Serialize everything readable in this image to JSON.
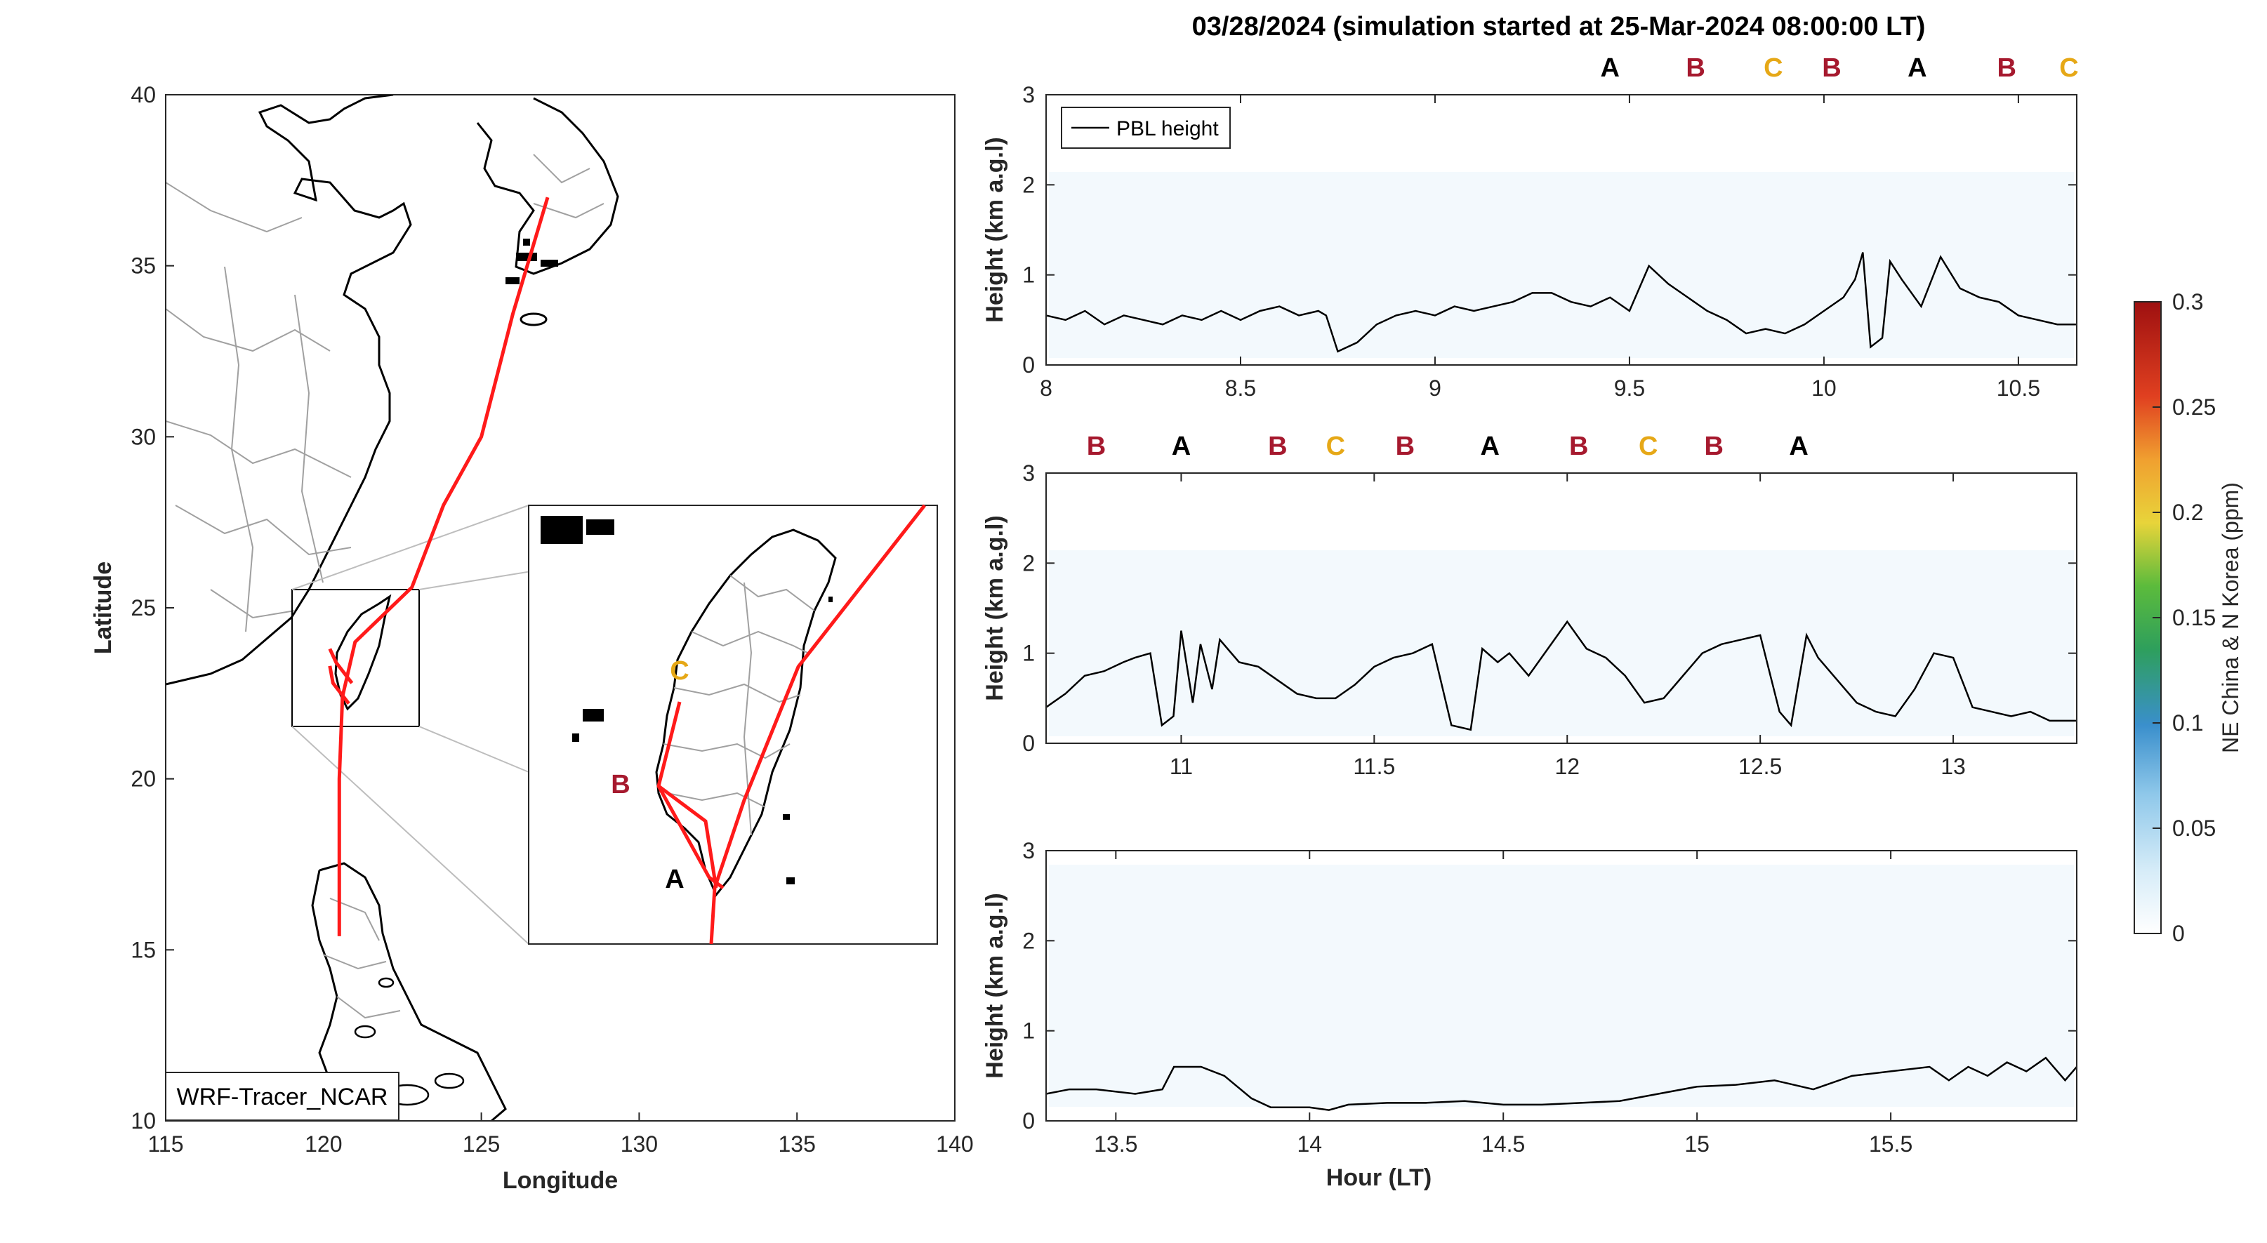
{
  "figure": {
    "title": "03/28/2024 (simulation started at 25-Mar-2024 08:00:00 LT)",
    "colors": {
      "track": "#ff1a1a",
      "segment_A": "#000000",
      "segment_B": "#a6192e",
      "segment_C": "#e6a817",
      "coast": "#000000",
      "border": "#a0a0a0",
      "tracer_bg": "#e9f4fb"
    }
  },
  "map": {
    "xlabel": "Longitude",
    "ylabel": "Latitude",
    "xlim": [
      115,
      140
    ],
    "ylim": [
      10,
      40
    ],
    "xticks": [
      "115",
      "120",
      "125",
      "130",
      "135",
      "140"
    ],
    "yticks": [
      "10",
      "15",
      "20",
      "25",
      "30",
      "35",
      "40"
    ],
    "model_label": "WRF-Tracer_NCAR",
    "inset_labels": [
      "C",
      "B",
      "A"
    ]
  },
  "colorbar": {
    "label": "NE China & N Korea (ppm)",
    "ticks": [
      "0",
      "0.05",
      "0.1",
      "0.15",
      "0.2",
      "0.25",
      "0.3"
    ],
    "range": [
      0,
      0.3
    ]
  },
  "chart_data": [
    {
      "type": "map",
      "name": "Flight track",
      "track_lonlat": [
        [
          127.1,
          37.0
        ],
        [
          126.0,
          33.6
        ],
        [
          125.0,
          30.0
        ],
        [
          123.8,
          28.0
        ],
        [
          122.8,
          25.6
        ],
        [
          121.0,
          24.0
        ],
        [
          120.6,
          22.4
        ],
        [
          120.5,
          20.0
        ],
        [
          120.5,
          15.4
        ]
      ],
      "taiwan_tracks": [
        [
          [
            120.9,
            22.8
          ],
          [
            120.4,
            23.4
          ],
          [
            120.2,
            23.8
          ]
        ],
        [
          [
            120.2,
            23.3
          ],
          [
            120.3,
            22.8
          ],
          [
            120.8,
            22.2
          ]
        ]
      ],
      "inset_track": [
        [
          0.0,
          0.0
        ]
      ]
    },
    {
      "type": "line",
      "name": "PBL height",
      "xlabel": "",
      "ylabel": "Height (km a.g.l)",
      "xlim": [
        8.0,
        10.65
      ],
      "ylim": [
        0,
        3
      ],
      "xticks": [
        "8",
        "8.5",
        "9",
        "9.5",
        "10",
        "10.5"
      ],
      "yticks": [
        "0",
        "1",
        "2",
        "3"
      ],
      "legend": "PBL height",
      "segments": [
        {
          "x": 9.45,
          "label": "A"
        },
        {
          "x": 9.67,
          "label": "B"
        },
        {
          "x": 9.87,
          "label": "C"
        },
        {
          "x": 10.02,
          "label": "B"
        },
        {
          "x": 10.24,
          "label": "A"
        },
        {
          "x": 10.47,
          "label": "B"
        },
        {
          "x": 10.63,
          "label": "C"
        }
      ],
      "x": [
        8.0,
        8.05,
        8.1,
        8.15,
        8.2,
        8.25,
        8.3,
        8.35,
        8.4,
        8.45,
        8.5,
        8.55,
        8.6,
        8.65,
        8.7,
        8.72,
        8.75,
        8.8,
        8.85,
        8.9,
        8.95,
        9.0,
        9.05,
        9.1,
        9.15,
        9.2,
        9.25,
        9.3,
        9.35,
        9.4,
        9.45,
        9.5,
        9.55,
        9.6,
        9.65,
        9.7,
        9.75,
        9.8,
        9.85,
        9.9,
        9.95,
        10.0,
        10.05,
        10.08,
        10.1,
        10.12,
        10.15,
        10.17,
        10.2,
        10.25,
        10.3,
        10.35,
        10.4,
        10.45,
        10.5,
        10.55,
        10.6,
        10.65
      ],
      "y": [
        0.55,
        0.5,
        0.6,
        0.45,
        0.55,
        0.5,
        0.45,
        0.55,
        0.5,
        0.6,
        0.5,
        0.6,
        0.65,
        0.55,
        0.6,
        0.55,
        0.15,
        0.25,
        0.45,
        0.55,
        0.6,
        0.55,
        0.65,
        0.6,
        0.65,
        0.7,
        0.8,
        0.8,
        0.7,
        0.65,
        0.75,
        0.6,
        1.1,
        0.9,
        0.75,
        0.6,
        0.5,
        0.35,
        0.4,
        0.35,
        0.45,
        0.6,
        0.75,
        0.95,
        1.25,
        0.2,
        0.3,
        1.15,
        0.95,
        0.65,
        1.2,
        0.85,
        0.75,
        0.7,
        0.55,
        0.5,
        0.45,
        0.45
      ]
    },
    {
      "type": "line",
      "name": "PBL height",
      "xlabel": "",
      "ylabel": "Height (km a.g.l)",
      "xlim": [
        10.65,
        13.32
      ],
      "ylim": [
        0,
        3
      ],
      "xticks": [
        "11",
        "11.5",
        "12",
        "12.5",
        "13"
      ],
      "yticks": [
        "0",
        "1",
        "2",
        "3"
      ],
      "segments": [
        {
          "x": 10.78,
          "label": "B"
        },
        {
          "x": 11.0,
          "label": "A"
        },
        {
          "x": 11.25,
          "label": "B"
        },
        {
          "x": 11.4,
          "label": "C"
        },
        {
          "x": 11.58,
          "label": "B"
        },
        {
          "x": 11.8,
          "label": "A"
        },
        {
          "x": 12.03,
          "label": "B"
        },
        {
          "x": 12.21,
          "label": "C"
        },
        {
          "x": 12.38,
          "label": "B"
        },
        {
          "x": 12.6,
          "label": "A"
        }
      ],
      "x": [
        10.65,
        10.7,
        10.75,
        10.8,
        10.85,
        10.88,
        10.92,
        10.95,
        10.98,
        11.0,
        11.03,
        11.05,
        11.08,
        11.1,
        11.15,
        11.2,
        11.25,
        11.3,
        11.35,
        11.4,
        11.45,
        11.5,
        11.55,
        11.6,
        11.65,
        11.7,
        11.75,
        11.78,
        11.82,
        11.85,
        11.9,
        11.95,
        12.0,
        12.05,
        12.1,
        12.15,
        12.2,
        12.25,
        12.3,
        12.35,
        12.4,
        12.45,
        12.5,
        12.55,
        12.58,
        12.62,
        12.65,
        12.7,
        12.75,
        12.8,
        12.85,
        12.9,
        12.95,
        13.0,
        13.05,
        13.1,
        13.15,
        13.2,
        13.25,
        13.32
      ],
      "y": [
        0.4,
        0.55,
        0.75,
        0.8,
        0.9,
        0.95,
        1.0,
        0.2,
        0.3,
        1.25,
        0.45,
        1.1,
        0.6,
        1.15,
        0.9,
        0.85,
        0.7,
        0.55,
        0.5,
        0.5,
        0.65,
        0.85,
        0.95,
        1.0,
        1.1,
        0.2,
        0.15,
        1.05,
        0.9,
        1.0,
        0.75,
        1.05,
        1.35,
        1.05,
        0.95,
        0.75,
        0.45,
        0.5,
        0.75,
        1.0,
        1.1,
        1.15,
        1.2,
        0.35,
        0.2,
        1.2,
        0.95,
        0.7,
        0.45,
        0.35,
        0.3,
        0.6,
        1.0,
        0.95,
        0.4,
        0.35,
        0.3,
        0.35,
        0.25,
        0.25
      ]
    },
    {
      "type": "line",
      "name": "PBL height",
      "xlabel": "Hour (LT)",
      "ylabel": "Height (km a.g.l)",
      "xlim": [
        13.32,
        15.98
      ],
      "ylim": [
        0,
        3
      ],
      "xticks": [
        "13.5",
        "14",
        "14.5",
        "15",
        "15.5"
      ],
      "yticks": [
        "0",
        "1",
        "2",
        "3"
      ],
      "x": [
        13.32,
        13.38,
        13.45,
        13.55,
        13.62,
        13.65,
        13.72,
        13.78,
        13.85,
        13.9,
        14.0,
        14.05,
        14.1,
        14.2,
        14.3,
        14.4,
        14.5,
        14.6,
        14.7,
        14.8,
        14.9,
        15.0,
        15.1,
        15.2,
        15.3,
        15.4,
        15.5,
        15.6,
        15.65,
        15.7,
        15.75,
        15.8,
        15.85,
        15.9,
        15.95,
        15.98
      ],
      "y": [
        0.3,
        0.35,
        0.35,
        0.3,
        0.35,
        0.6,
        0.6,
        0.5,
        0.25,
        0.15,
        0.15,
        0.12,
        0.18,
        0.2,
        0.2,
        0.22,
        0.18,
        0.18,
        0.2,
        0.22,
        0.3,
        0.38,
        0.4,
        0.45,
        0.35,
        0.5,
        0.55,
        0.6,
        0.45,
        0.6,
        0.5,
        0.65,
        0.55,
        0.7,
        0.45,
        0.6
      ]
    }
  ]
}
